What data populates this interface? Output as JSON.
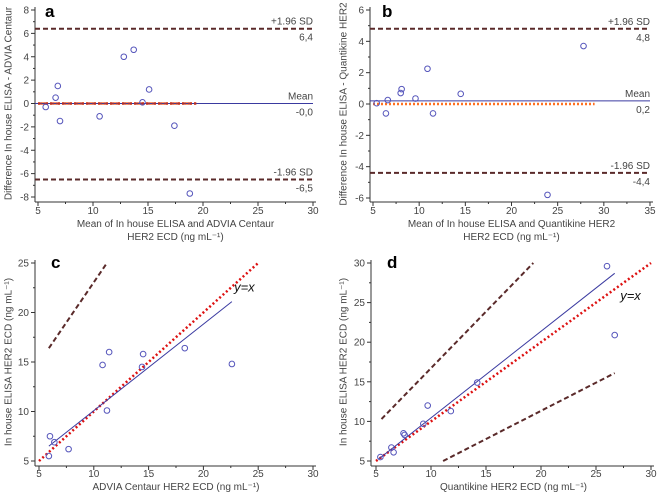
{
  "chart_data": [
    {
      "panel": "a",
      "type": "scatter",
      "subtype": "bland-altman",
      "xlabel": [
        "Mean of In house ELISA and ADVIA Centaur",
        "HER2 ECD (ng mL⁻¹)"
      ],
      "ylabel": "Difference In house ELISA - ADVIA Centaur",
      "xlim": [
        5,
        30
      ],
      "ylim": [
        -8,
        8
      ],
      "xticks": [
        5,
        10,
        15,
        20,
        25,
        30
      ],
      "yticks": [
        -8,
        -6,
        -4,
        -2,
        0,
        2,
        4,
        6,
        8
      ],
      "points": [
        [
          5.7,
          -0.3
        ],
        [
          6.6,
          0.5
        ],
        [
          6.8,
          1.5
        ],
        [
          7.0,
          -1.5
        ],
        [
          10.6,
          -1.1
        ],
        [
          12.8,
          4.0
        ],
        [
          13.7,
          4.6
        ],
        [
          14.5,
          0.1
        ],
        [
          15.1,
          1.2
        ],
        [
          17.4,
          -1.9
        ],
        [
          18.8,
          -7.7
        ]
      ],
      "mean": {
        "value": 0.0,
        "label": "Mean",
        "value_label": "-0,0"
      },
      "upper": {
        "value": 6.4,
        "label": "+1.96 SD",
        "value_label": "6,4"
      },
      "lower": {
        "value": -6.5,
        "label": "-1.96 SD",
        "value_label": "-6,5"
      },
      "zero_line": [
        5,
        19.4
      ]
    },
    {
      "panel": "b",
      "type": "scatter",
      "subtype": "bland-altman",
      "xlabel": [
        "Mean of In house ELISA and Quantikine HER2",
        "HER2 ECD (ng mL⁻¹)"
      ],
      "ylabel": "Difference In house ELISA - Quantikine HER2",
      "xlim": [
        5,
        35
      ],
      "ylim": [
        -6,
        6
      ],
      "xticks": [
        5,
        10,
        15,
        20,
        25,
        30,
        35
      ],
      "yticks": [
        -6,
        -4,
        -2,
        0,
        2,
        4,
        6
      ],
      "points": [
        [
          5.4,
          0.05
        ],
        [
          6.4,
          -0.6
        ],
        [
          6.6,
          0.25
        ],
        [
          8.0,
          0.7
        ],
        [
          8.1,
          0.95
        ],
        [
          9.6,
          0.35
        ],
        [
          10.9,
          2.25
        ],
        [
          11.5,
          -0.6
        ],
        [
          14.5,
          0.65
        ],
        [
          23.9,
          -5.8
        ],
        [
          27.8,
          3.7
        ]
      ],
      "mean": {
        "value": 0.2,
        "label": "Mean",
        "value_label": "0,2"
      },
      "upper": {
        "value": 4.8,
        "label": "+1.96 SD",
        "value_label": "4,8"
      },
      "lower": {
        "value": -4.4,
        "label": "-1.96 SD",
        "value_label": "-4,4"
      },
      "zero_line": [
        5,
        29
      ]
    },
    {
      "panel": "c",
      "type": "scatter",
      "subtype": "regression",
      "xlabel": [
        "ADVIA Centaur HER2 ECD (ng mL⁻¹)"
      ],
      "ylabel": "In house ELISA HER2 ECD (ng mL⁻¹)",
      "xlim": [
        5,
        30
      ],
      "ylim": [
        5,
        25
      ],
      "xticks": [
        5,
        10,
        15,
        20,
        25,
        30
      ],
      "yticks": [
        5,
        10,
        15,
        20,
        25
      ],
      "points": [
        [
          5.9,
          5.5
        ],
        [
          6.0,
          7.5
        ],
        [
          6.4,
          6.9
        ],
        [
          7.7,
          6.2
        ],
        [
          10.8,
          14.7
        ],
        [
          11.2,
          10.1
        ],
        [
          11.4,
          16.0
        ],
        [
          14.4,
          14.5
        ],
        [
          14.5,
          15.8
        ],
        [
          18.3,
          16.4
        ],
        [
          22.6,
          14.8
        ]
      ],
      "regression": [
        [
          5.9,
          6.5
        ],
        [
          22.6,
          21.1
        ]
      ],
      "identity": [
        [
          5,
          5
        ],
        [
          25,
          25
        ]
      ],
      "identity_label": "y=x",
      "dashed": [
        [
          [
            5.9,
            16.4
          ],
          [
            11.2,
            25
          ]
        ]
      ]
    },
    {
      "panel": "d",
      "type": "scatter",
      "subtype": "regression",
      "xlabel": [
        "Quantikine HER2 ECD (ng mL⁻¹)"
      ],
      "ylabel": "In house ELISA HER2 ECD (ng mL⁻¹)",
      "xlim": [
        5,
        30
      ],
      "ylim": [
        5,
        30
      ],
      "xticks": [
        5,
        10,
        15,
        20,
        25,
        30
      ],
      "yticks": [
        5,
        10,
        15,
        20,
        25,
        30
      ],
      "points": [
        [
          5.4,
          5.5
        ],
        [
          6.4,
          6.7
        ],
        [
          6.6,
          6.1
        ],
        [
          7.5,
          8.5
        ],
        [
          7.6,
          8.3
        ],
        [
          9.3,
          9.7
        ],
        [
          9.7,
          12.0
        ],
        [
          11.8,
          11.3
        ],
        [
          14.2,
          14.9
        ],
        [
          26.0,
          29.6
        ],
        [
          26.7,
          20.9
        ]
      ],
      "regression": [
        [
          5.2,
          5.2
        ],
        [
          26.7,
          28.7
        ]
      ],
      "identity": [
        [
          5,
          5
        ],
        [
          30,
          30
        ]
      ],
      "identity_label": "y=x",
      "dashed": [
        [
          [
            5.5,
            10.3
          ],
          [
            19.3,
            30
          ]
        ],
        [
          [
            11.1,
            5
          ],
          [
            26.7,
            16.1
          ]
        ]
      ]
    }
  ],
  "colors": {
    "points": "#5555bb",
    "mean": "#3a3aa0",
    "sd": "#5a2a2a",
    "zero": "#ff7020",
    "identity": "#dd1111"
  }
}
